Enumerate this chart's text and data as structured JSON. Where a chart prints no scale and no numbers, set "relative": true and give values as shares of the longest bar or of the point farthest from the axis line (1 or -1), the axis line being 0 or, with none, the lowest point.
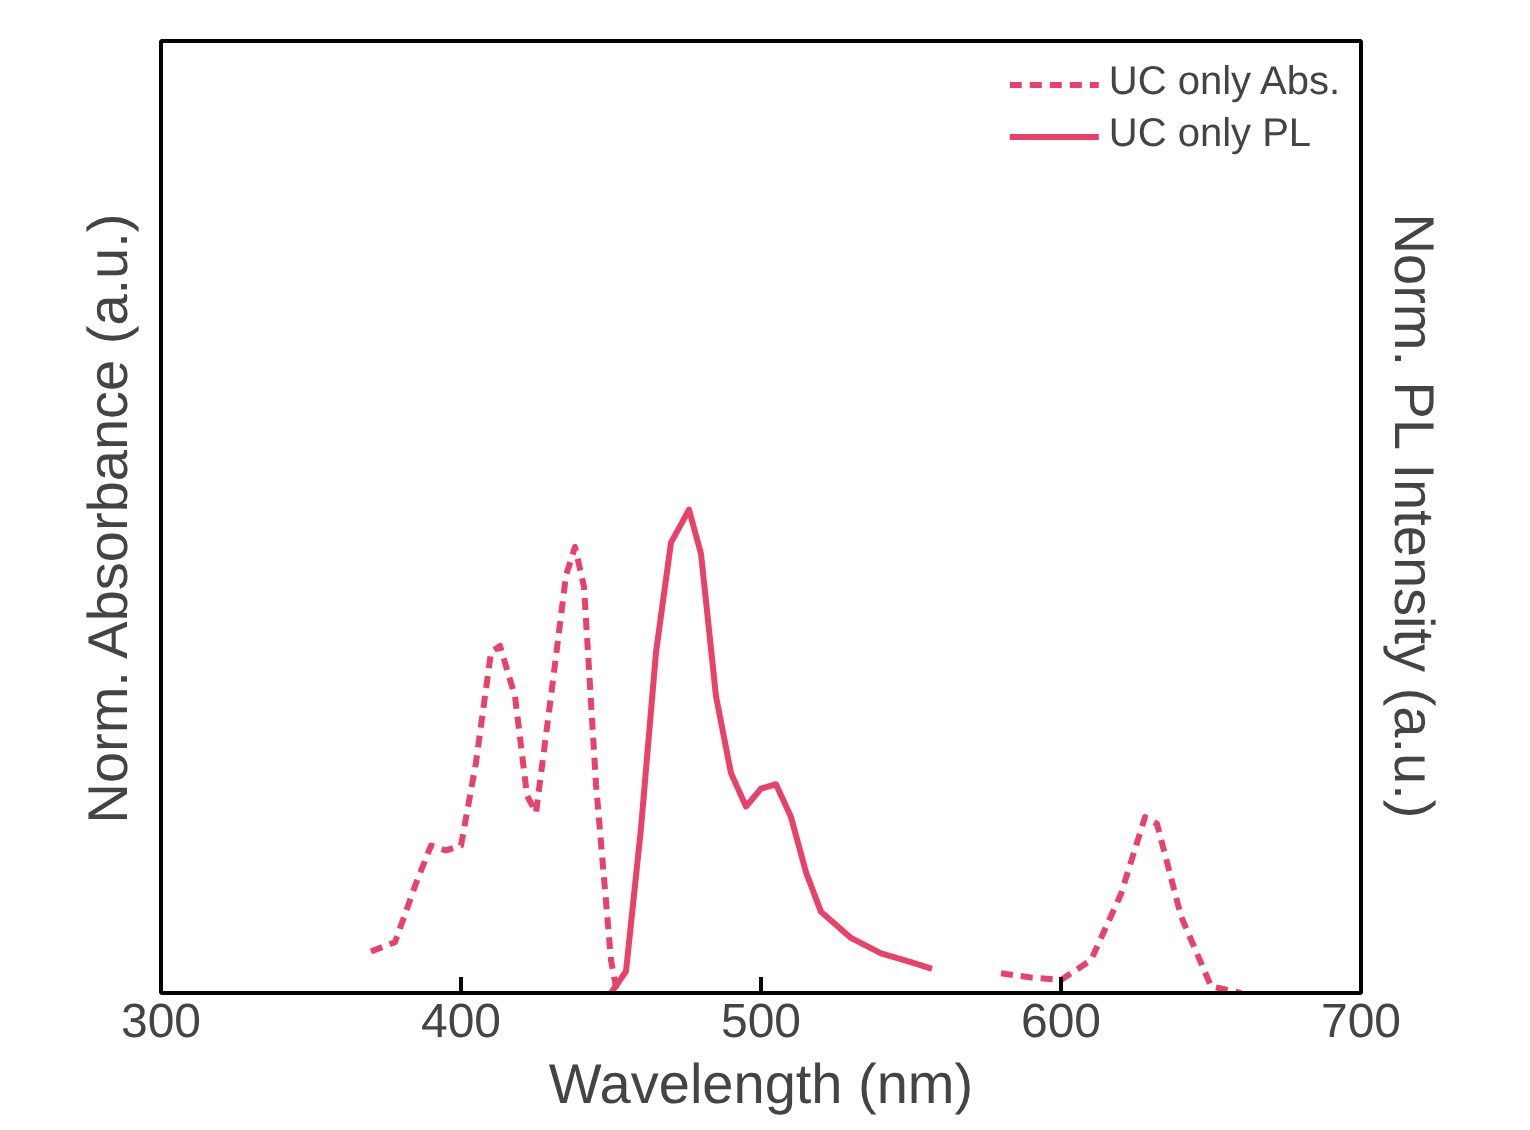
{
  "chart_data": {
    "type": "line",
    "relative": true,
    "xlabel": "Wavelength (nm)",
    "ylabel": "Norm. Absorbance (a.u.)",
    "y2label": "Norm. PL Intensity (a.u.)",
    "xlim": [
      300,
      700
    ],
    "xticks": [
      300,
      400,
      500,
      600,
      700
    ],
    "legend": "top right",
    "grid": false,
    "series": [
      {
        "name": "UC only Abs.",
        "color": "#e8416a",
        "line_style": "dashed",
        "x": [
          370,
          378,
          385,
          390,
          395,
          400,
          405,
          410,
          413,
          418,
          422,
          425,
          430,
          435,
          438,
          441,
          445,
          450,
          452,
          515,
          580,
          590,
          600,
          610,
          620,
          628,
          632,
          640,
          650,
          660
        ],
        "values": [
          0.086,
          0.105,
          0.227,
          0.305,
          0.295,
          0.305,
          0.477,
          0.705,
          0.718,
          0.614,
          0.409,
          0.373,
          0.614,
          0.864,
          0.923,
          0.841,
          0.432,
          0.068,
          0,
          null,
          0.041,
          0.032,
          0.027,
          0.068,
          0.205,
          0.364,
          0.35,
          0.159,
          0.014,
          0
        ]
      },
      {
        "name": "UC only PL",
        "color": "#e8416a",
        "line_style": "solid",
        "x": [
          450,
          455,
          460,
          465,
          470,
          476,
          480,
          485,
          490,
          495,
          500,
          505,
          510,
          515,
          520,
          530,
          540,
          550,
          557
        ],
        "values": [
          0,
          0.045,
          0.341,
          0.705,
          0.932,
          1,
          0.909,
          0.614,
          0.455,
          0.386,
          0.423,
          0.432,
          0.364,
          0.25,
          0.168,
          0.114,
          0.082,
          0.064,
          0.05
        ]
      }
    ]
  }
}
